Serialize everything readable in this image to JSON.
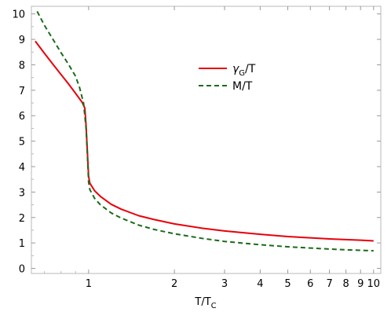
{
  "chart_data": {
    "type": "line",
    "title": "",
    "xlabel": "T/T",
    "xlabel_sub": "C",
    "ylabel": "",
    "x_scale": "log",
    "xlim": [
      0.63,
      10.6
    ],
    "ylim": [
      -0.2,
      10.3
    ],
    "x_ticks": [
      1,
      2,
      3,
      4,
      5,
      6,
      7,
      8,
      9,
      10
    ],
    "y_ticks": [
      0,
      1,
      2,
      3,
      4,
      5,
      6,
      7,
      8,
      9,
      10
    ],
    "grid": false,
    "legend_position": "top-right",
    "series": [
      {
        "name": "γ",
        "name_sub": "G",
        "name_suffix": "/T",
        "color": "#e8000b",
        "style": "solid",
        "points": [
          [
            0.65,
            8.93
          ],
          [
            0.7,
            8.45
          ],
          [
            0.75,
            8.02
          ],
          [
            0.8,
            7.62
          ],
          [
            0.85,
            7.25
          ],
          [
            0.9,
            6.88
          ],
          [
            0.95,
            6.52
          ],
          [
            0.97,
            6.3
          ],
          [
            0.98,
            5.6
          ],
          [
            0.99,
            4.6
          ],
          [
            1.0,
            3.62
          ],
          [
            1.01,
            3.35
          ],
          [
            1.05,
            3.05
          ],
          [
            1.1,
            2.83
          ],
          [
            1.2,
            2.52
          ],
          [
            1.3,
            2.33
          ],
          [
            1.5,
            2.07
          ],
          [
            1.7,
            1.92
          ],
          [
            2.0,
            1.75
          ],
          [
            2.5,
            1.58
          ],
          [
            3.0,
            1.47
          ],
          [
            4.0,
            1.34
          ],
          [
            5.0,
            1.25
          ],
          [
            6.0,
            1.2
          ],
          [
            7.0,
            1.16
          ],
          [
            8.0,
            1.13
          ],
          [
            9.0,
            1.11
          ],
          [
            10.0,
            1.08
          ]
        ]
      },
      {
        "name": "M/T",
        "color": "#1a6b1a",
        "style": "dashed",
        "points": [
          [
            0.66,
            10.1
          ],
          [
            0.7,
            9.55
          ],
          [
            0.75,
            9.0
          ],
          [
            0.8,
            8.48
          ],
          [
            0.85,
            8.02
          ],
          [
            0.9,
            7.55
          ],
          [
            0.93,
            7.1
          ],
          [
            0.96,
            6.5
          ],
          [
            0.98,
            5.5
          ],
          [
            0.99,
            4.5
          ],
          [
            1.0,
            3.4
          ],
          [
            1.01,
            3.1
          ],
          [
            1.05,
            2.75
          ],
          [
            1.1,
            2.5
          ],
          [
            1.2,
            2.18
          ],
          [
            1.3,
            1.98
          ],
          [
            1.5,
            1.7
          ],
          [
            1.7,
            1.53
          ],
          [
            2.0,
            1.36
          ],
          [
            2.5,
            1.18
          ],
          [
            3.0,
            1.06
          ],
          [
            4.0,
            0.93
          ],
          [
            5.0,
            0.85
          ],
          [
            6.0,
            0.8
          ],
          [
            7.0,
            0.76
          ],
          [
            8.0,
            0.73
          ],
          [
            9.0,
            0.71
          ],
          [
            10.0,
            0.69
          ]
        ]
      }
    ]
  }
}
